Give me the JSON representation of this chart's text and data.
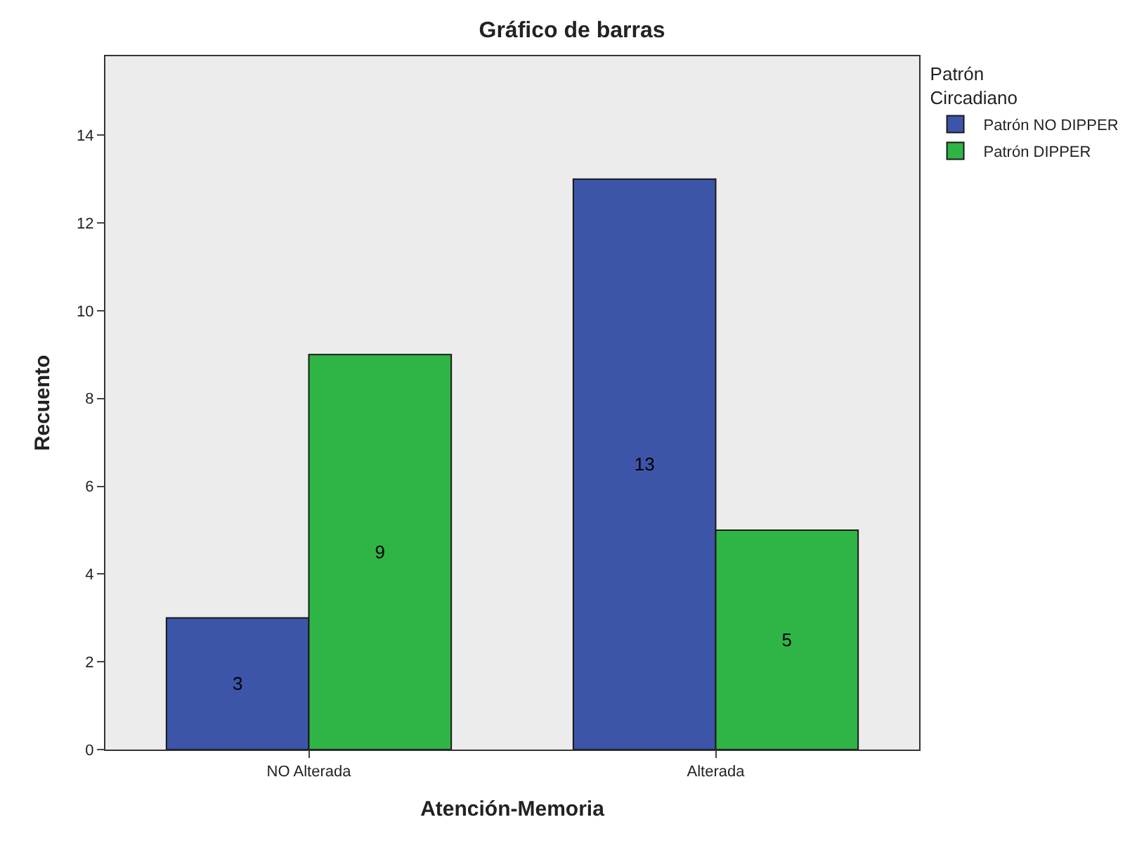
{
  "chart_data": {
    "type": "bar",
    "title": "Gráfico de barras",
    "xlabel": "Atención-Memoria",
    "ylabel": "Recuento",
    "legend_title": "Patrón Circadiano",
    "categories": [
      "NO Alterada",
      "Alterada"
    ],
    "series": [
      {
        "name": "Patrón NO DIPPER",
        "color": "#3d55a8",
        "values": [
          3,
          13
        ]
      },
      {
        "name": "Patrón DIPPER",
        "color": "#2fb545",
        "values": [
          9,
          5
        ]
      }
    ],
    "ylim": [
      0,
      15.8
    ],
    "yticks": [
      0,
      2,
      4,
      6,
      8,
      10,
      12,
      14
    ],
    "grid": false,
    "legend": "top right",
    "data_labels": true
  }
}
